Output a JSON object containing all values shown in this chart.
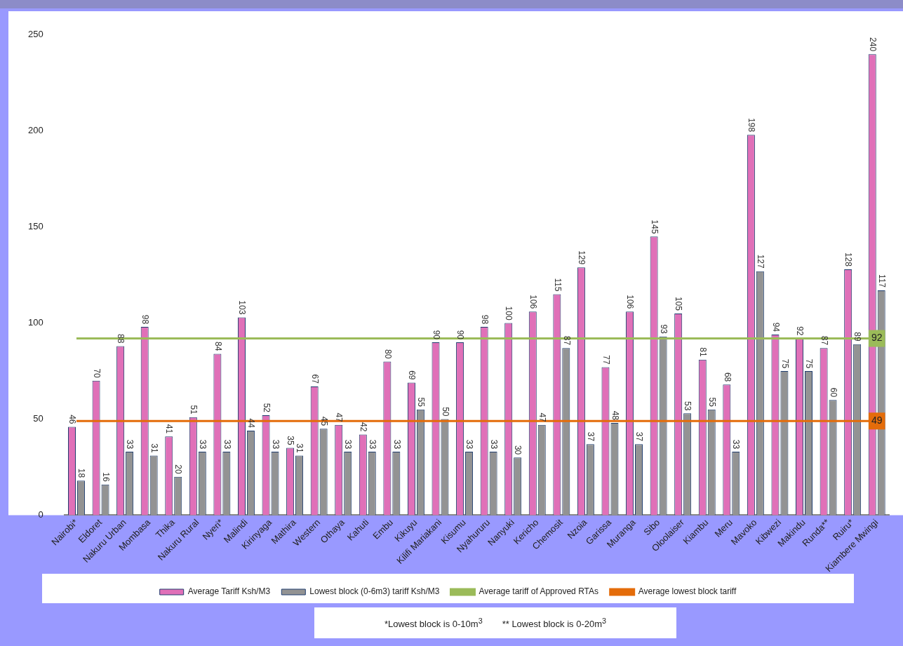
{
  "chart_data": {
    "type": "bar",
    "categories": [
      "Nairobi*",
      "Eldoret",
      "Nakuru Urban",
      "Mombasa",
      "Thika",
      "Nakuru Rural",
      "Nyeri*",
      "Malindi",
      "Kirinyaga",
      "Mathira",
      "Western",
      "Othaya",
      "Kahuti",
      "Embu",
      "Kikuyu",
      "Kilifi Mariakani",
      "Kisumu",
      "Nyahururu",
      "Nanyuki",
      "Kericho",
      "Chemosit",
      "Nzoia",
      "Garissa",
      "Muranga",
      "Sibo",
      "Oloolaiser",
      "Kiambu",
      "Meru",
      "Mavoko",
      "Kibwezi",
      "Makindu",
      "Runda**",
      "Ruiru*",
      "Kiambere Mwingi"
    ],
    "series": [
      {
        "name": "Average Tariff Ksh/M3",
        "color": "#e070b8",
        "values": [
          46,
          70,
          88,
          98,
          41,
          51,
          84,
          103,
          52,
          35,
          67,
          47,
          42,
          80,
          69,
          90,
          90,
          98,
          100,
          106,
          115,
          129,
          77,
          106,
          145,
          105,
          81,
          68,
          198,
          94,
          92,
          87,
          128,
          240
        ]
      },
      {
        "name": "Lowest block (0-6m3) tariff Ksh/M3",
        "color": "#939393",
        "values": [
          18,
          16,
          33,
          31,
          20,
          33,
          33,
          44,
          33,
          31,
          45,
          33,
          33,
          33,
          55,
          50,
          33,
          33,
          30,
          47,
          87,
          37,
          48,
          37,
          93,
          53,
          55,
          33,
          127,
          75,
          75,
          60,
          89,
          117
        ]
      },
      {
        "type": "line",
        "name": "Average tariff of Approved RTAs",
        "color": "#9bbb59",
        "values": [
          92,
          92,
          92,
          92,
          92,
          92,
          92,
          92,
          92,
          92,
          92,
          92,
          92,
          92,
          92,
          92,
          92,
          92,
          92,
          92,
          92,
          92,
          92,
          92,
          92,
          92,
          92,
          92,
          92,
          92,
          92,
          92,
          92,
          92
        ],
        "value_labels": [
          null,
          null,
          null,
          null,
          null,
          null,
          null,
          null,
          null,
          null,
          null,
          null,
          null,
          null,
          null,
          null,
          null,
          null,
          null,
          null,
          null,
          null,
          null,
          null,
          null,
          null,
          null,
          null,
          null,
          null,
          null,
          null,
          null,
          "92"
        ]
      },
      {
        "type": "line",
        "name": "Average lowest block tariff",
        "color": "#e46c0a",
        "values": [
          49,
          49,
          49,
          49,
          49,
          49,
          49,
          49,
          49,
          49,
          49,
          49,
          49,
          49,
          49,
          49,
          49,
          49,
          49,
          49,
          49,
          49,
          49,
          49,
          49,
          49,
          49,
          49,
          49,
          49,
          49,
          49,
          49,
          49
        ],
        "value_labels": [
          null,
          null,
          null,
          null,
          null,
          null,
          null,
          null,
          null,
          null,
          null,
          null,
          null,
          null,
          null,
          null,
          null,
          null,
          null,
          null,
          null,
          null,
          null,
          null,
          null,
          null,
          null,
          null,
          null,
          null,
          null,
          null,
          null,
          "49"
        ]
      }
    ],
    "ylim": [
      0,
      250
    ],
    "yticks": [
      0,
      50,
      100,
      150,
      200,
      250
    ],
    "grid": false,
    "legend": "bottom",
    "data_labels": true,
    "marker": "none",
    "annotations": [
      "*Lowest block is 0-10m$^{3}$",
      "** Lowest  block is 0-20m$^{3}$"
    ]
  }
}
